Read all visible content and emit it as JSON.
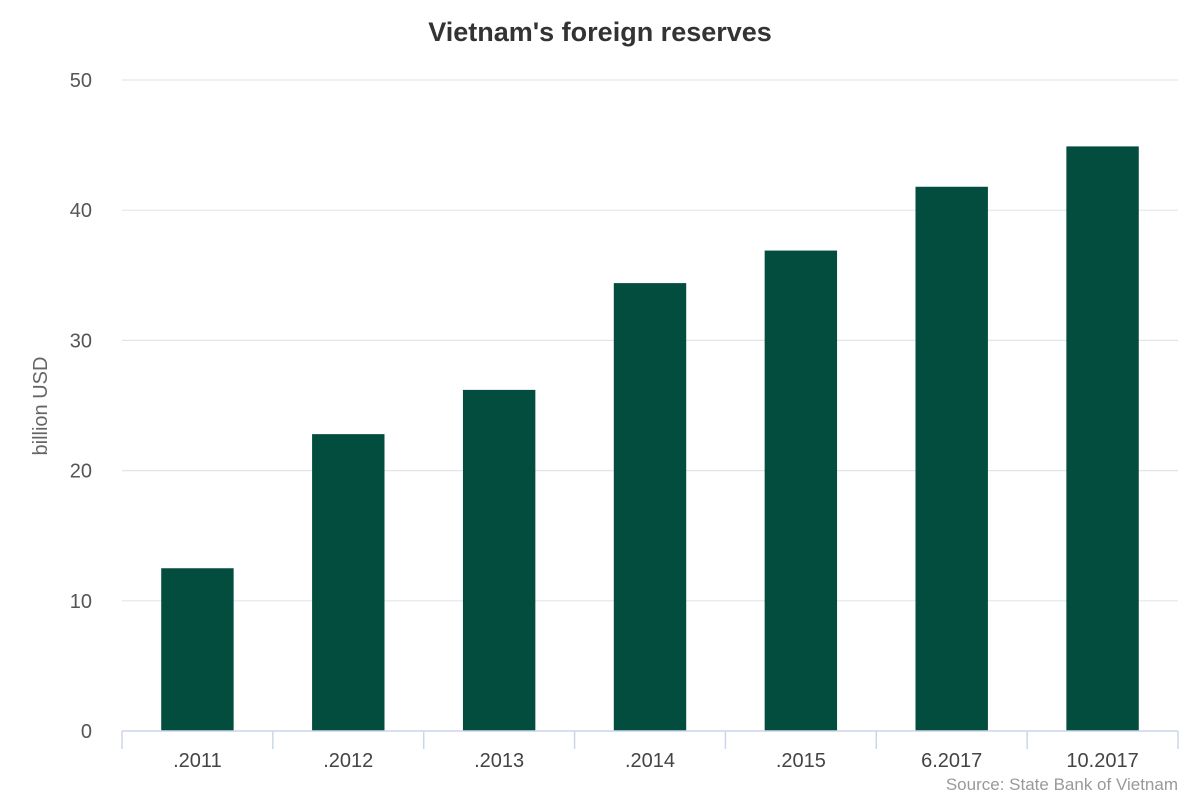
{
  "chart_data": {
    "type": "bar",
    "title": "Vietnam's foreign reserves",
    "ylabel": "billion USD",
    "xlabel": "",
    "categories": [
      ".2011",
      ".2012",
      ".2013",
      ".2014",
      ".2015",
      "6.2017",
      "10.2017"
    ],
    "values": [
      12.5,
      22.8,
      26.2,
      34.4,
      36.9,
      41.8,
      44.9
    ],
    "ylim": [
      0,
      50
    ],
    "yticks": [
      0,
      10,
      20,
      30,
      40,
      50
    ],
    "grid": true,
    "legend": "none",
    "bar_color": "#024d3e",
    "credit": "Source: State Bank of Vietnam"
  }
}
